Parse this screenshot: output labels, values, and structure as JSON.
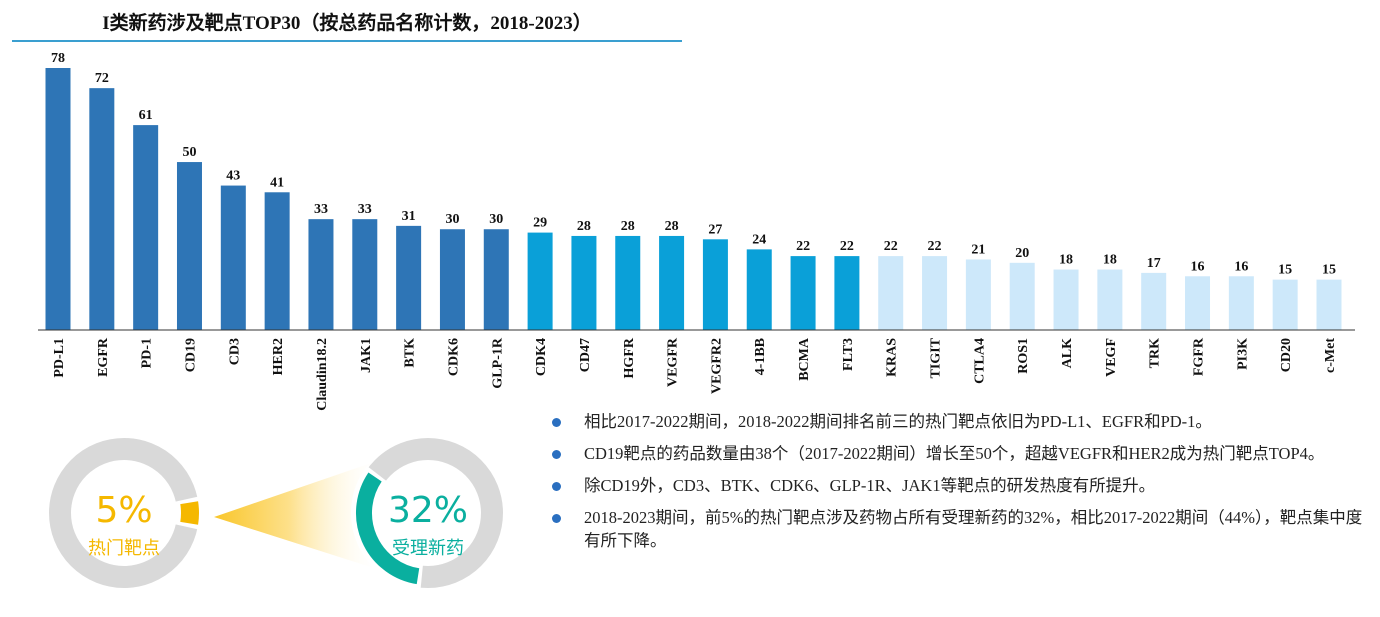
{
  "chart_data": {
    "type": "bar",
    "title": "I类新药涉及靶点TOP30（按总药品名称计数，2018-2023）",
    "categories": [
      "PD-L1",
      "EGFR",
      "PD-1",
      "CD19",
      "CD3",
      "HER2",
      "Claudin18.2",
      "JAK1",
      "BTK",
      "CDK6",
      "GLP-1R",
      "CDK4",
      "CD47",
      "HGFR",
      "VEGFR",
      "VEGFR2",
      "4-1BB",
      "BCMA",
      "FLT3",
      "KRAS",
      "TIGIT",
      "CTLA4",
      "ROS1",
      "ALK",
      "VEGF",
      "TRK",
      "FGFR",
      "PI3K",
      "CD20",
      "c-Met"
    ],
    "values": [
      78,
      72,
      61,
      50,
      43,
      41,
      33,
      33,
      31,
      30,
      30,
      29,
      28,
      28,
      28,
      27,
      24,
      22,
      22,
      22,
      22,
      21,
      20,
      18,
      18,
      17,
      16,
      16,
      15,
      15
    ],
    "ylim": [
      0,
      80
    ],
    "grid": false,
    "bar_colors": {
      "dark": "#2e75b6",
      "medium": "#0aa0d8",
      "light": "#cde8fa"
    },
    "color_groups": [
      11,
      8,
      11
    ]
  },
  "donuts": {
    "left": {
      "value": "5%",
      "label": "热门靶点",
      "fraction": 0.05,
      "color": "#f5b800"
    },
    "right": {
      "value": "32%",
      "label": "受理新药",
      "fraction": 0.32,
      "color": "#0aaf9f"
    },
    "ring_color": "#d9d9d9"
  },
  "bullets": [
    "相比2017-2022期间，2018-2022期间排名前三的热门靶点依旧为PD-L1、EGFR和PD-1。",
    "CD19靶点的药品数量由38个（2017-2022期间）增长至50个，超越VEGFR和HER2成为热门靶点TOP4。",
    "除CD19外，CD3、BTK、CDK6、GLP-1R、JAK1等靶点的研发热度有所提升。",
    "2018-2023期间，前5%的热门靶点涉及药物占所有受理新药的32%，相比2017-2022期间（44%），靶点集中度有所下降。"
  ]
}
